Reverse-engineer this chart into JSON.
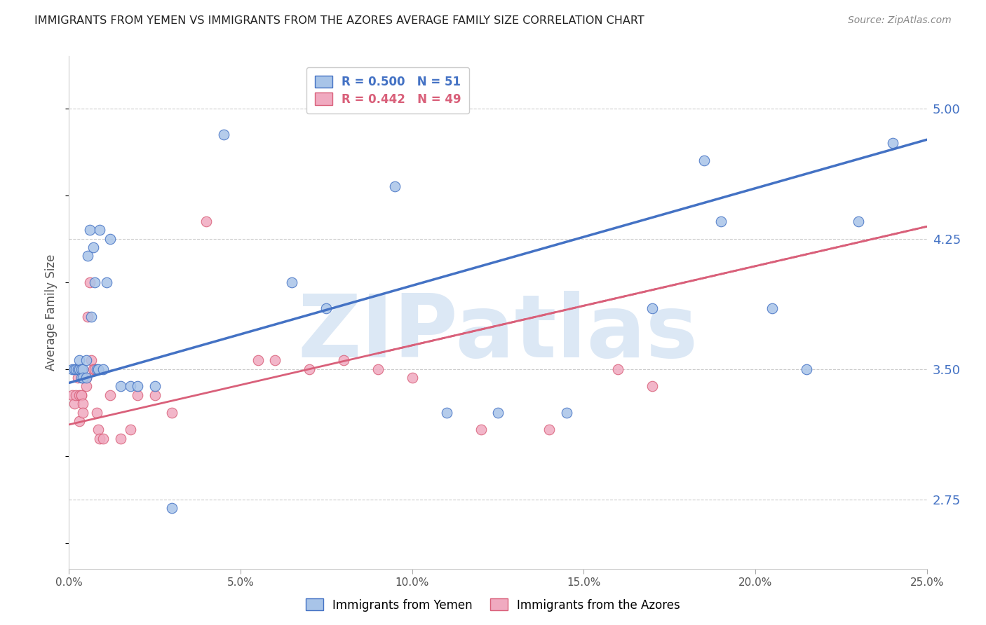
{
  "title": "IMMIGRANTS FROM YEMEN VS IMMIGRANTS FROM THE AZORES AVERAGE FAMILY SIZE CORRELATION CHART",
  "source": "Source: ZipAtlas.com",
  "ylabel": "Average Family Size",
  "xlabel_ticks": [
    "0.0%",
    "5.0%",
    "10.0%",
    "15.0%",
    "20.0%",
    "25.0%"
  ],
  "xlabel_vals": [
    0.0,
    5.0,
    10.0,
    15.0,
    20.0,
    25.0
  ],
  "ylabel_ticks": [
    "2.75",
    "3.50",
    "4.25",
    "5.00"
  ],
  "ylabel_vals": [
    2.75,
    3.5,
    4.25,
    5.0
  ],
  "xlim": [
    0.0,
    25.0
  ],
  "ylim": [
    2.35,
    5.3
  ],
  "legend_R1": "0.500",
  "legend_N1": "51",
  "legend_R2": "0.442",
  "legend_N2": "49",
  "color_blue": "#a8c4e8",
  "color_pink": "#f0aac0",
  "color_blue_line": "#4472c4",
  "color_pink_line": "#d9607a",
  "color_blue_text": "#4472c4",
  "color_pink_text": "#d9607a",
  "watermark": "ZIPatlas",
  "watermark_color": "#dce8f5",
  "background_color": "#ffffff",
  "grid_color": "#cccccc",
  "blue_x": [
    0.1,
    0.15,
    0.2,
    0.25,
    0.3,
    0.3,
    0.35,
    0.35,
    0.4,
    0.4,
    0.5,
    0.5,
    0.55,
    0.6,
    0.65,
    0.7,
    0.75,
    0.8,
    0.85,
    0.9,
    1.0,
    1.1,
    1.2,
    1.5,
    1.8,
    2.0,
    2.5,
    3.0,
    4.5,
    6.5,
    7.5,
    9.5,
    11.0,
    12.5,
    14.5,
    17.0,
    18.5,
    19.0,
    20.5,
    21.5,
    23.0,
    24.0
  ],
  "blue_y": [
    3.5,
    3.5,
    3.5,
    3.5,
    3.5,
    3.55,
    3.45,
    3.5,
    3.5,
    3.45,
    3.55,
    3.45,
    4.15,
    4.3,
    3.8,
    4.2,
    4.0,
    3.5,
    3.5,
    4.3,
    3.5,
    4.0,
    4.25,
    3.4,
    3.4,
    3.4,
    3.4,
    2.7,
    4.85,
    4.0,
    3.85,
    4.55,
    3.25,
    3.25,
    3.25,
    3.85,
    4.7,
    4.35,
    3.85,
    3.5,
    4.35,
    4.8
  ],
  "pink_x": [
    0.1,
    0.15,
    0.2,
    0.25,
    0.3,
    0.3,
    0.35,
    0.35,
    0.4,
    0.4,
    0.5,
    0.5,
    0.55,
    0.6,
    0.65,
    0.7,
    0.75,
    0.8,
    0.85,
    0.9,
    1.0,
    1.2,
    1.5,
    1.8,
    2.0,
    2.5,
    3.0,
    4.0,
    5.5,
    6.0,
    7.0,
    8.0,
    9.0,
    10.0,
    12.0,
    14.0,
    16.0,
    17.0
  ],
  "pink_y": [
    3.35,
    3.3,
    3.35,
    3.45,
    3.35,
    3.2,
    3.35,
    3.35,
    3.3,
    3.25,
    3.45,
    3.4,
    3.8,
    4.0,
    3.55,
    3.5,
    3.5,
    3.25,
    3.15,
    3.1,
    3.1,
    3.35,
    3.1,
    3.15,
    3.35,
    3.35,
    3.25,
    4.35,
    3.55,
    3.55,
    3.5,
    3.55,
    3.5,
    3.45,
    3.15,
    3.15,
    3.5,
    3.4
  ],
  "blue_line_x0": 0.0,
  "blue_line_y0": 3.42,
  "blue_line_x1": 25.0,
  "blue_line_y1": 4.82,
  "pink_line_x0": 0.0,
  "pink_line_y0": 3.18,
  "pink_line_x1": 25.0,
  "pink_line_y1": 4.32
}
